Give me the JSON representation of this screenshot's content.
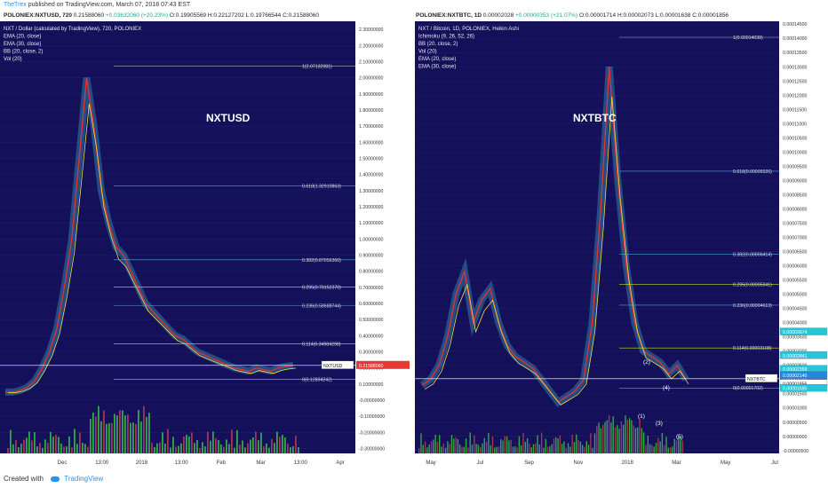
{
  "publish": {
    "user": "TheTrex",
    "text": "published on TradingView.com, March 07, 2018 07:43 EST"
  },
  "footer": {
    "created": "Created with",
    "brand": "TradingView"
  },
  "left": {
    "header": {
      "symbol": "POLONIEX:NXTUSD, 720",
      "open": "0.21588060",
      "change": "+0.03632060 (+20.23%)",
      "o": "0.19905569",
      "h": "0.22127202",
      "l": "0.19766544",
      "c": "0.21588060"
    },
    "legend": [
      "NXT / Dollar (calculated by TradingView), 720, POLONIEX",
      "EMA (20, close)",
      "EMA (30, close)",
      "BB (20, close, 2)",
      "Vol (20)"
    ],
    "watermark": "NXTUSD",
    "price_label": "NXTUSD",
    "price_value": "0.21588060"
  },
  "right": {
    "header": {
      "symbol": "POLONIEX:NXTBTC, 1D",
      "open": "0.00002028",
      "change": "+0.00000353 (+21.07%)",
      "o": "0.00001714",
      "h": "0.00002073",
      "l": "0.00001638",
      "c": "0.00001856"
    },
    "legend": [
      "NXT / Bitcoin, 1D, POLONIEX, Heikin Ashi",
      "Ichimoku (9, 26, 52, 26)",
      "BB (20, close, 2)",
      "Vol (20)",
      "EMA (20, close)",
      "EMA (30, close)"
    ],
    "watermark": "NXTBTC",
    "price_label": "NXTBTC",
    "price_value": "0.00002028"
  },
  "chart_data": [
    {
      "type": "line",
      "title": "NXT / Dollar (calculated by TradingView), 720, POLONIEX",
      "x_ticks": [
        "Dec",
        "13:00",
        "2018",
        "13:00",
        "Feb",
        "Mar",
        "13:00",
        "Apr"
      ],
      "y_ticks": [
        "2.30000000",
        "2.20000000",
        "2.10000000",
        "2.00000000",
        "1.90000000",
        "1.80000000",
        "1.70000000",
        "1.60000000",
        "1.50000000",
        "1.40000000",
        "1.30000000",
        "1.20000000",
        "1.10000000",
        "1.00000000",
        "0.90000000",
        "0.80000000",
        "0.70000000",
        "0.60000000",
        "0.50000000",
        "0.40000000",
        "0.30000000",
        "0.20000000",
        "0.10000000",
        "-0.00000000",
        "-0.10000000",
        "-0.20000000",
        "-0.30000000"
      ],
      "ylim": [
        -0.33,
        2.35
      ],
      "fib_levels": [
        {
          "label": "1(2.07132981)",
          "value": 2.0713
        },
        {
          "label": "0.618(1.32910863)",
          "value": 1.3291
        },
        {
          "label": "0.382(0.87056360)",
          "value": 0.8706
        },
        {
          "label": "0.295(0.70152370)",
          "value": 0.7015
        },
        {
          "label": "0.236(0.58688744)",
          "value": 0.5869
        },
        {
          "label": "0.114(0.34984298)",
          "value": 0.3498
        },
        {
          "label": "0(0.12834242)",
          "value": 0.1283
        }
      ],
      "series": [
        {
          "values": [
            0.05,
            0.05,
            0.06,
            0.08,
            0.12,
            0.2,
            0.3,
            0.45,
            0.7,
            1.0,
            1.5,
            2.0,
            1.7,
            1.3,
            1.1,
            0.95,
            0.9,
            0.8,
            0.7,
            0.6,
            0.55,
            0.5,
            0.45,
            0.4,
            0.38,
            0.34,
            0.3,
            0.28,
            0.26,
            0.24,
            0.22,
            0.2,
            0.19,
            0.18,
            0.2,
            0.19,
            0.18,
            0.2,
            0.21,
            0.216
          ]
        }
      ],
      "last": 0.2159
    },
    {
      "type": "line",
      "title": "NXT / Bitcoin, 1D, POLONIEX, Heikin Ashi",
      "x_ticks": [
        "May",
        "Jul",
        "Sep",
        "Nov",
        "2018",
        "Mar",
        "May",
        "Jul"
      ],
      "y_ticks": [
        "0.00014500",
        "0.00014000",
        "0.00013500",
        "0.00013000",
        "0.00012500",
        "0.00012000",
        "0.00011500",
        "0.00011000",
        "0.00010500",
        "0.00010000",
        "0.00009500",
        "0.00009000",
        "0.00008500",
        "0.00008000",
        "0.00007500",
        "0.00007000",
        "0.00006500",
        "0.00006000",
        "0.00005500",
        "0.00005000",
        "0.00004500",
        "0.00004000",
        "0.00003500",
        "0.00003000",
        "0.00002500",
        "0.00002000",
        "0.00001500",
        "0.00001000",
        "0.00000500",
        "0.00000000",
        "-0.00000500"
      ],
      "ylim": [
        -6e-06,
        0.000146
      ],
      "fib_levels": [
        {
          "label": "1(0.00014038)",
          "value": 0.00014038
        },
        {
          "label": "0.618(0.00009326)",
          "value": 9.326e-05
        },
        {
          "label": "0.382(0.00006414)",
          "value": 6.414e-05
        },
        {
          "label": "0.295(0.00005341)",
          "value": 5.341e-05
        },
        {
          "label": "0.236(0.00004613)",
          "value": 4.613e-05
        },
        {
          "label": "0.114(0.00003108)",
          "value": 3.108e-05
        },
        {
          "label": "0(0.00001702)",
          "value": 1.702e-05
        }
      ],
      "price_marks": [
        "0.00003674",
        "0.00002841",
        "0.00002359",
        "0.00002140",
        "0.00002028",
        "0.00001856",
        "0.00001690"
      ],
      "wave_labels": [
        "(1)",
        "(2)",
        "(3)",
        "(4)",
        "(5)"
      ],
      "series": [
        {
          "values": [
            1.8e-05,
            2e-05,
            2.5e-05,
            3.5e-05,
            5e-05,
            5.8e-05,
            4e-05,
            4.8e-05,
            5.2e-05,
            4e-05,
            3.2e-05,
            2.8e-05,
            2.6e-05,
            2.4e-05,
            2e-05,
            1.6e-05,
            1.2e-05,
            1.4e-05,
            1.6e-05,
            2e-05,
            4e-05,
            8e-05,
            0.00013,
            9e-05,
            6e-05,
            4e-05,
            3e-05,
            2.8e-05,
            2.6e-05,
            2.2e-05,
            2.5e-05,
            2e-05
          ]
        }
      ],
      "last": 2.028e-05
    }
  ]
}
